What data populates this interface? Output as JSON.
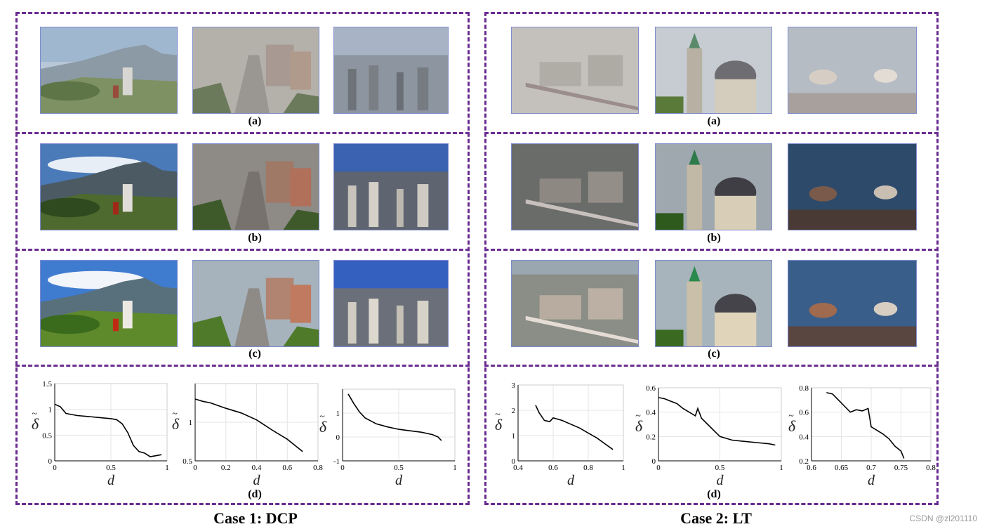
{
  "figure": {
    "row_labels": [
      "(a)",
      "(b)",
      "(c)",
      "(d)"
    ],
    "cases": [
      {
        "title": "Case 1: DCP",
        "images": [
          {
            "name": "mountain-scene",
            "description_icon": "landscape-icon"
          },
          {
            "name": "city-street-scene",
            "description_icon": "city-icon"
          },
          {
            "name": "city-skyline-scene",
            "description_icon": "skyline-icon"
          }
        ]
      },
      {
        "title": "Case 2: LT",
        "images": [
          {
            "name": "city-train-scene",
            "description_icon": "train-icon"
          },
          {
            "name": "church-domes-scene",
            "description_icon": "church-icon"
          },
          {
            "name": "horses-forest-scene",
            "description_icon": "horse-icon"
          }
        ]
      }
    ],
    "axis_labels": {
      "x": "d",
      "y": "δ",
      "y_tilde": "~"
    }
  },
  "watermark": "CSDN @zl201110",
  "chart_data": [
    {
      "type": "line",
      "case": "Case 1: DCP",
      "x": [
        0,
        0.05,
        0.1,
        0.2,
        0.3,
        0.4,
        0.5,
        0.55,
        0.6,
        0.65,
        0.7,
        0.75,
        0.8,
        0.85,
        0.9,
        0.95
      ],
      "y": [
        1.1,
        1.05,
        0.92,
        0.88,
        0.86,
        0.84,
        0.82,
        0.8,
        0.72,
        0.55,
        0.3,
        0.18,
        0.15,
        0.08,
        0.1,
        0.12
      ],
      "xlim": [
        0,
        1
      ],
      "ylim": [
        0,
        1.5
      ],
      "xticks": [
        "0",
        "0.5",
        "1"
      ],
      "yticks": [
        "0",
        "0.5",
        "1",
        "1.5"
      ]
    },
    {
      "type": "line",
      "case": "Case 1: DCP",
      "x": [
        0,
        0.05,
        0.1,
        0.2,
        0.3,
        0.4,
        0.5,
        0.6,
        0.65,
        0.7
      ],
      "y": [
        1.3,
        1.27,
        1.25,
        1.18,
        1.12,
        1.03,
        0.9,
        0.78,
        0.7,
        0.62
      ],
      "xlim": [
        0,
        0.8
      ],
      "ylim": [
        0.5,
        1.5
      ],
      "xticks": [
        "0",
        "0.2",
        "0.4",
        "0.6",
        "0.8"
      ],
      "yticks": [
        "0.5",
        "1"
      ]
    },
    {
      "type": "line",
      "case": "Case 1: DCP",
      "x": [
        0.05,
        0.1,
        0.15,
        0.2,
        0.3,
        0.4,
        0.5,
        0.6,
        0.7,
        0.8,
        0.85,
        0.88
      ],
      "y": [
        1.8,
        1.4,
        1.05,
        0.8,
        0.55,
        0.42,
        0.32,
        0.26,
        0.2,
        0.1,
        0.0,
        -0.15
      ],
      "xlim": [
        0,
        1
      ],
      "ylim": [
        -1,
        2
      ],
      "xticks": [
        "0",
        "0.5",
        "1"
      ],
      "yticks": [
        "-1",
        "0",
        "1"
      ]
    },
    {
      "type": "line",
      "case": "Case 2: LT",
      "x": [
        0.5,
        0.52,
        0.55,
        0.58,
        0.6,
        0.65,
        0.7,
        0.75,
        0.8,
        0.85,
        0.9,
        0.94
      ],
      "y": [
        2.2,
        1.9,
        1.6,
        1.55,
        1.7,
        1.6,
        1.45,
        1.3,
        1.1,
        0.9,
        0.65,
        0.45
      ],
      "xlim": [
        0.4,
        1
      ],
      "ylim": [
        0,
        3
      ],
      "xticks": [
        "0.4",
        "0.6",
        "0.8",
        "1"
      ],
      "yticks": [
        "0",
        "1",
        "2",
        "3"
      ]
    },
    {
      "type": "line",
      "case": "Case 2: LT",
      "x": [
        0,
        0.05,
        0.1,
        0.15,
        0.2,
        0.25,
        0.3,
        0.32,
        0.35,
        0.4,
        0.45,
        0.5,
        0.6,
        0.7,
        0.8,
        0.9,
        0.95
      ],
      "y": [
        0.52,
        0.51,
        0.49,
        0.47,
        0.43,
        0.4,
        0.37,
        0.43,
        0.35,
        0.3,
        0.25,
        0.2,
        0.17,
        0.16,
        0.15,
        0.14,
        0.13
      ],
      "xlim": [
        0,
        1
      ],
      "ylim": [
        0,
        0.6
      ],
      "xticks": [
        "0",
        "0.5",
        "1"
      ],
      "yticks": [
        "0",
        "0.2",
        "0.4",
        "0.6"
      ]
    },
    {
      "type": "line",
      "case": "Case 2: LT",
      "x": [
        0.625,
        0.635,
        0.645,
        0.655,
        0.665,
        0.675,
        0.685,
        0.695,
        0.7,
        0.71,
        0.72,
        0.73,
        0.74,
        0.75,
        0.755
      ],
      "y": [
        0.76,
        0.75,
        0.7,
        0.65,
        0.6,
        0.62,
        0.61,
        0.63,
        0.48,
        0.45,
        0.42,
        0.38,
        0.32,
        0.28,
        0.22
      ],
      "xlim": [
        0.6,
        0.8
      ],
      "ylim": [
        0.2,
        0.8
      ],
      "xticks": [
        "0.6",
        "0.65",
        "0.7",
        "0.75",
        "0.8"
      ],
      "yticks": [
        "0.2",
        "0.4",
        "0.6",
        "0.8"
      ]
    }
  ]
}
